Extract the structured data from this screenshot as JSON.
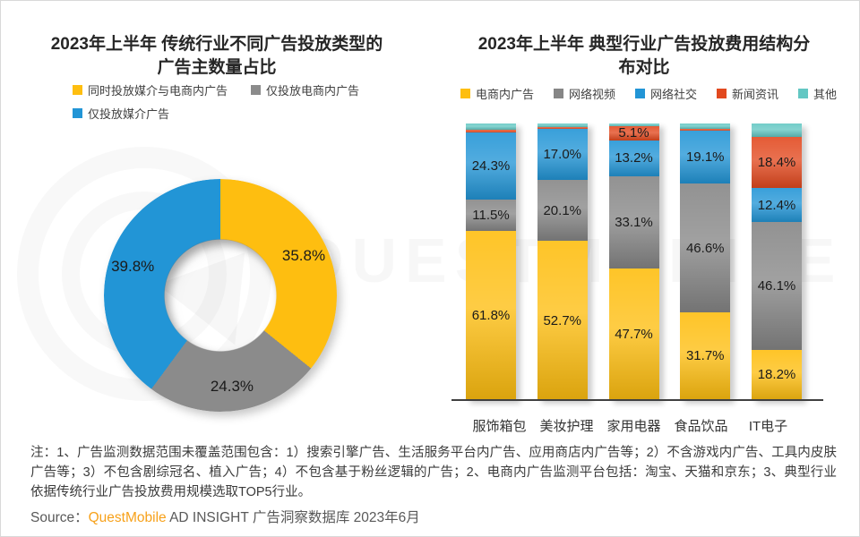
{
  "page": {
    "watermark_text": "QUESTMOBILE",
    "note": "注：1、广告监测数据范围未覆盖范围包含：1）搜索引擎广告、生活服务平台内广告、应用商店内广告等；2）不含游戏内广告、工具内皮肤广告等；3）不包含剧综冠名、植入广告；4）不包含基于粉丝逻辑的广告；2、电商内广告监测平台包括：淘宝、天猫和京东；3、典型行业依据传统行业广告投放费用规模选取TOP5行业。",
    "source": {
      "prefix": "Source：",
      "brand": "QuestMobile",
      "rest": " AD INSIGHT 广告洞察数据库 2023年6月",
      "brand_color": "#F7A11A",
      "text_color": "#595959"
    }
  },
  "chart_data": [
    {
      "type": "pie",
      "subtype": "donut",
      "title": "2023年上半年 传统行业不同广告投放类型的广告主数量占比",
      "title_line1": "2023年上半年 传统行业不同广告投放类型的",
      "title_line2": "广告主数量占比",
      "legend_position": "top",
      "start_angle_deg": 0,
      "direction": "clockwise",
      "segments": [
        {
          "label": "同时投放媒介与电商内广告",
          "value": 35.8,
          "display": "35.8%",
          "color": "#FEBE10"
        },
        {
          "label": "仅投放电商内广告",
          "value": 24.3,
          "display": "24.3%",
          "color": "#8B8B8B"
        },
        {
          "label": "仅投放媒介广告",
          "value": 39.8,
          "display": "39.8%",
          "color": "#2295D6"
        }
      ],
      "legend_rows": [
        [
          0,
          1
        ],
        [
          2
        ]
      ]
    },
    {
      "type": "bar",
      "stacked": true,
      "normalized": true,
      "ylim": [
        0,
        100
      ],
      "grid": false,
      "legend_position": "top",
      "title": "2023年上半年 典型行业广告投放费用结构分布对比",
      "title_line1": "2023年上半年 典型行业广告投放费用结构分",
      "title_line2": "布对比",
      "categories": [
        "服饰箱包",
        "美妆护理",
        "家用电器",
        "食品饮品",
        "IT电子"
      ],
      "series": [
        {
          "name": "电商内广告",
          "color": "#FEBE10",
          "values": [
            61.8,
            52.7,
            47.7,
            31.7,
            18.2
          ],
          "labels": [
            "61.8%",
            "52.7%",
            "47.7%",
            "31.7%",
            "18.2%"
          ]
        },
        {
          "name": "网络视频",
          "color": "#868686",
          "values": [
            11.5,
            20.1,
            33.1,
            46.6,
            46.1
          ],
          "labels": [
            "11.5%",
            "20.1%",
            "33.1%",
            "46.6%",
            "46.1%"
          ]
        },
        {
          "name": "网络社交",
          "color": "#2295D6",
          "values": [
            24.3,
            17.0,
            13.2,
            19.1,
            12.4
          ],
          "labels": [
            "24.3%",
            "17.0%",
            "13.2%",
            "19.1%",
            "12.4%"
          ]
        },
        {
          "name": "新闻资讯",
          "color": "#E2491F",
          "values": [
            1.0,
            0.6,
            5.1,
            0.6,
            18.4
          ],
          "labels": [
            null,
            null,
            "5.1%",
            null,
            "18.4%"
          ]
        },
        {
          "name": "其他",
          "color": "#63C7C3",
          "values": [
            2.4,
            1.2,
            0.9,
            2.0,
            4.9
          ],
          "labels": [
            null,
            null,
            null,
            null,
            null
          ]
        }
      ]
    }
  ]
}
